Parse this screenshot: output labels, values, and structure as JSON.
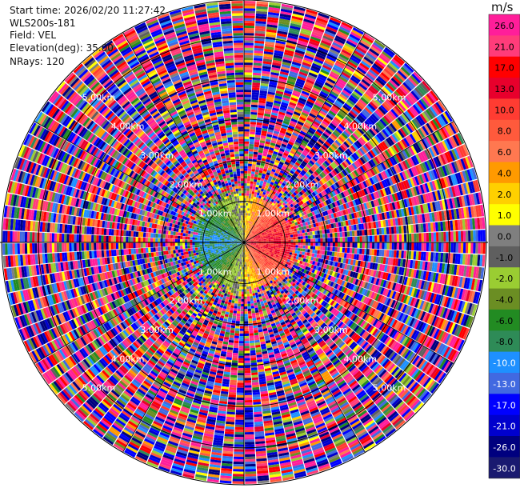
{
  "meta": {
    "start_time": "Start time: 2026/02/20 11:27:42",
    "instrument": "WLS200s-181",
    "field": "Field: VEL",
    "elevation": "Elevation(deg): 35.00",
    "nrays": "NRays: 120"
  },
  "chart_data": {
    "type": "ppi",
    "field": "VEL",
    "units": "m/s",
    "nrays": 120,
    "elevation_deg": 35.0,
    "range_rings_km": [
      1.0,
      2.0,
      3.0,
      4.0,
      5.0
    ],
    "ring_labels": [
      "1.00km",
      "2.00km",
      "3.00km",
      "4.00km",
      "5.00km"
    ],
    "max_range_km": 5.9,
    "velocity_pattern": {
      "reliable_range_km": 1.1,
      "positive_toward_azimuth_deg": 90,
      "noise_beyond_km": 1.3
    },
    "colorbar": {
      "title": "m/s",
      "tick_labels": [
        "26.0",
        "21.0",
        "17.0",
        "13.0",
        "10.0",
        "8.0",
        "6.0",
        "4.0",
        "2.0",
        "1.0",
        "0.0",
        "-1.0",
        "-2.0",
        "-4.0",
        "-6.0",
        "-8.0",
        "-10.0",
        "-13.0",
        "-17.0",
        "-21.0",
        "-26.0",
        "-30.0"
      ],
      "colors": [
        "#ff1e9a",
        "#ff3c7a",
        "#ff0000",
        "#e8002c",
        "#ff3c32",
        "#ff5a3c",
        "#ff7850",
        "#ff9a00",
        "#ffd000",
        "#ffff00",
        "#7f7f7f",
        "#5f5f5f",
        "#9acd32",
        "#6b8e23",
        "#228b22",
        "#2e8b57",
        "#1e90ff",
        "#4169e1",
        "#0000ff",
        "#0000cd",
        "#00007f",
        "#191970"
      ]
    }
  }
}
